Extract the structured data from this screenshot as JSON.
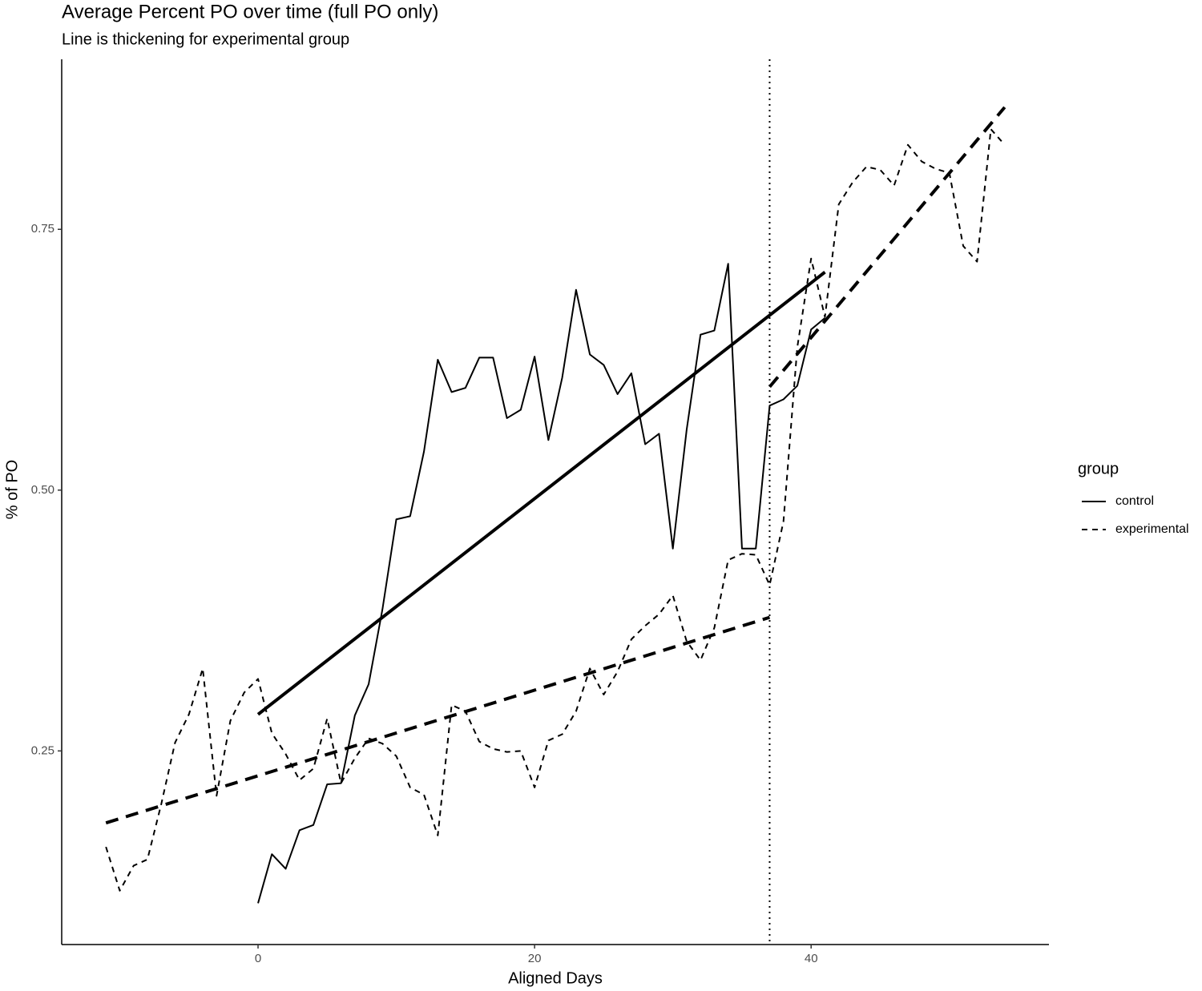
{
  "chart_data": {
    "type": "line",
    "title": "Average Percent PO over time (full PO only)",
    "subtitle": "Line is thickening for experimental group",
    "x_label": "Aligned Days",
    "y_label": "% of PO",
    "legend_title": "group",
    "legend_position": "right",
    "xlim": [
      -14.2,
      57.2
    ],
    "ylim": [
      0.0644,
      0.913
    ],
    "xticks": [
      0,
      20,
      40
    ],
    "yticks": [
      {
        "value": 0.25,
        "label": "0.25"
      },
      {
        "value": 0.5,
        "label": "0.50"
      },
      {
        "value": 0.75,
        "label": "0.75"
      }
    ],
    "grid": false,
    "series": [
      {
        "name": "control",
        "color": "#000000",
        "dash": "solid",
        "x": [
          0,
          1,
          2,
          3,
          4,
          5,
          6,
          7,
          8,
          9,
          10,
          11,
          12,
          13,
          14,
          15,
          16,
          17,
          18,
          19,
          20,
          21,
          22,
          23,
          24,
          25,
          26,
          27,
          28,
          29,
          30,
          31,
          32,
          33,
          34,
          35,
          36,
          37,
          38,
          39,
          40,
          41
        ],
        "values": [
          0.104,
          0.151,
          0.137,
          0.174,
          0.179,
          0.218,
          0.219,
          0.284,
          0.314,
          0.386,
          0.472,
          0.475,
          0.537,
          0.625,
          0.594,
          0.598,
          0.627,
          0.627,
          0.569,
          0.577,
          0.628,
          0.548,
          0.608,
          0.692,
          0.63,
          0.62,
          0.592,
          0.612,
          0.544,
          0.554,
          0.444,
          0.558,
          0.649,
          0.653,
          0.717,
          0.444,
          0.444,
          0.581,
          0.587,
          0.6,
          0.654,
          0.665
        ]
      },
      {
        "name": "experimental",
        "color": "#000000",
        "dash": "dashed",
        "x": [
          -11,
          -10,
          -9,
          -8,
          -7,
          -6,
          -5,
          -4,
          -3,
          -2,
          -1,
          0,
          1,
          2,
          3,
          4,
          5,
          6,
          7,
          8,
          9,
          10,
          11,
          12,
          13,
          14,
          15,
          16,
          17,
          18,
          19,
          20,
          21,
          22,
          23,
          24,
          25,
          26,
          27,
          28,
          29,
          30,
          31,
          32,
          33,
          34,
          35,
          36,
          37,
          38,
          39,
          40,
          41,
          42,
          43,
          44,
          45,
          46,
          47,
          48,
          49,
          50,
          51,
          52,
          53,
          54
        ],
        "values": [
          0.158,
          0.116,
          0.14,
          0.146,
          0.199,
          0.258,
          0.285,
          0.329,
          0.207,
          0.279,
          0.306,
          0.319,
          0.267,
          0.247,
          0.222,
          0.233,
          0.281,
          0.219,
          0.243,
          0.262,
          0.257,
          0.245,
          0.215,
          0.208,
          0.169,
          0.294,
          0.288,
          0.259,
          0.252,
          0.249,
          0.25,
          0.215,
          0.26,
          0.266,
          0.288,
          0.329,
          0.304,
          0.326,
          0.357,
          0.37,
          0.381,
          0.399,
          0.355,
          0.337,
          0.368,
          0.433,
          0.439,
          0.438,
          0.409,
          0.47,
          0.637,
          0.722,
          0.666,
          0.774,
          0.795,
          0.81,
          0.807,
          0.792,
          0.831,
          0.815,
          0.808,
          0.804,
          0.734,
          0.719,
          0.846,
          0.831
        ]
      }
    ],
    "fits": [
      {
        "dash": "solid",
        "x": [
          0,
          41
        ],
        "values": [
          0.285,
          0.709
        ]
      },
      {
        "dash": "dashed",
        "x": [
          -11,
          37
        ],
        "values": [
          0.181,
          0.378
        ]
      },
      {
        "dash": "dashed",
        "x": [
          37,
          54
        ],
        "values": [
          0.599,
          0.867
        ]
      }
    ],
    "vline": 37
  }
}
